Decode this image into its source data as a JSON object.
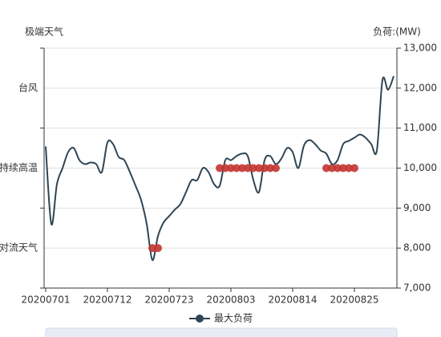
{
  "chart_data": {
    "type": "line",
    "x": [
      "20200701",
      null,
      null,
      null,
      null,
      null,
      null,
      null,
      null,
      null,
      null,
      "20200712",
      null,
      null,
      null,
      null,
      null,
      null,
      null,
      null,
      null,
      null,
      "20200723",
      null,
      null,
      null,
      null,
      null,
      null,
      null,
      null,
      null,
      null,
      "20200803",
      null,
      null,
      null,
      null,
      null,
      null,
      null,
      null,
      null,
      null,
      "20200814",
      null,
      null,
      null,
      null,
      null,
      null,
      null,
      null,
      null,
      null,
      "20200825",
      null,
      null,
      null,
      null,
      null,
      null,
      null
    ],
    "ylabel": "极端天气",
    "y_categories": [
      "对流天气",
      "持续高温",
      "台风"
    ],
    "y2label": "负荷:(MW)",
    "y2lim": [
      7000,
      13000
    ],
    "y2ticks": [
      {
        "value": 7000,
        "label": "7,000"
      },
      {
        "value": 8000,
        "label": "8,000"
      },
      {
        "value": 9000,
        "label": "9,000"
      },
      {
        "value": 10000,
        "label": "10,000"
      },
      {
        "value": 11000,
        "label": "11,000"
      },
      {
        "value": 12000,
        "label": "12,000"
      },
      {
        "value": 13000,
        "label": "13,000"
      }
    ],
    "grid": true,
    "series": [
      {
        "name": "最大负荷",
        "type": "line",
        "axis": "y2",
        "color": "#2f4554",
        "values": [
          10540,
          8600,
          9600,
          10000,
          10400,
          10500,
          10200,
          10100,
          10140,
          10100,
          9900,
          10640,
          10600,
          10280,
          10200,
          9900,
          9560,
          9200,
          8600,
          7700,
          8300,
          8640,
          8800,
          8960,
          9100,
          9400,
          9700,
          9700,
          10000,
          9900,
          9600,
          9560,
          10200,
          10200,
          10300,
          10360,
          10300,
          9700,
          9400,
          10200,
          10300,
          10100,
          10240,
          10500,
          10400,
          10000,
          10560,
          10700,
          10600,
          10440,
          10360,
          10100,
          10200,
          10600,
          10680,
          10760,
          10840,
          10760,
          10600,
          10440,
          12200,
          11960,
          12300
        ]
      },
      {
        "type": "scatter",
        "axis": "y",
        "color": "#c23531",
        "values": [
          null,
          null,
          null,
          null,
          null,
          null,
          null,
          null,
          null,
          null,
          null,
          null,
          null,
          null,
          null,
          null,
          null,
          null,
          null,
          0,
          0,
          null,
          null,
          null,
          null,
          null,
          null,
          null,
          null,
          null,
          null,
          1,
          1,
          1,
          1,
          1,
          1,
          1,
          1,
          1,
          1,
          1,
          null,
          null,
          null,
          null,
          null,
          null,
          null,
          null,
          1,
          1,
          1,
          1,
          1,
          1,
          null,
          null,
          null,
          null,
          null,
          null,
          null
        ]
      }
    ]
  }
}
